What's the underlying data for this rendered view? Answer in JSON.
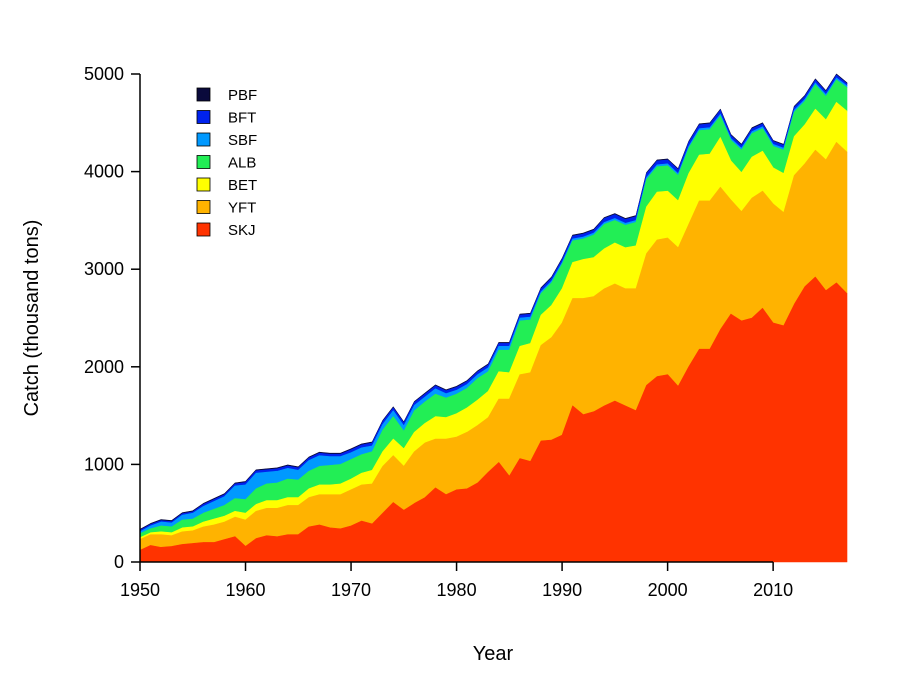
{
  "chart_data": {
    "type": "area",
    "stacked": true,
    "title": "",
    "xlabel": "Year",
    "ylabel": "Catch (thousand tons)",
    "xlim": [
      1950,
      2017
    ],
    "ylim": [
      0,
      5000
    ],
    "x_ticks": [
      1950,
      1960,
      1970,
      1980,
      1990,
      2000,
      2010
    ],
    "y_ticks": [
      0,
      1000,
      2000,
      3000,
      4000,
      5000
    ],
    "grid": false,
    "legend_position": "top-left",
    "legend_order": [
      "PBF",
      "BFT",
      "SBF",
      "ALB",
      "BET",
      "YFT",
      "SKJ"
    ],
    "years": [
      1950,
      1951,
      1952,
      1953,
      1954,
      1955,
      1956,
      1957,
      1958,
      1959,
      1960,
      1961,
      1962,
      1963,
      1964,
      1965,
      1966,
      1967,
      1968,
      1969,
      1970,
      1971,
      1972,
      1973,
      1974,
      1975,
      1976,
      1977,
      1978,
      1979,
      1980,
      1981,
      1982,
      1983,
      1984,
      1985,
      1986,
      1987,
      1988,
      1989,
      1990,
      1991,
      1992,
      1993,
      1994,
      1995,
      1996,
      1997,
      1998,
      1999,
      2000,
      2001,
      2002,
      2003,
      2004,
      2005,
      2006,
      2007,
      2008,
      2009,
      2010,
      2011,
      2012,
      2013,
      2014,
      2015,
      2016,
      2017
    ],
    "series": [
      {
        "name": "SKJ",
        "color": "#ff3300",
        "values": [
          120,
          170,
          150,
          160,
          180,
          190,
          200,
          200,
          230,
          260,
          160,
          240,
          270,
          260,
          280,
          280,
          360,
          380,
          350,
          340,
          370,
          420,
          390,
          500,
          610,
          530,
          600,
          660,
          760,
          690,
          740,
          750,
          810,
          920,
          1020,
          880,
          1060,
          1030,
          1240,
          1250,
          1300,
          1600,
          1510,
          1540,
          1600,
          1650,
          1600,
          1550,
          1810,
          1900,
          1920,
          1800,
          2000,
          2180,
          2180,
          2380,
          2540,
          2470,
          2500,
          2600,
          2450,
          2420,
          2640,
          2820,
          2920,
          2780,
          2860,
          2750
        ]
      },
      {
        "name": "YFT",
        "color": "#ffb300",
        "values": [
          110,
          110,
          130,
          110,
          130,
          130,
          160,
          180,
          180,
          200,
          270,
          280,
          280,
          290,
          300,
          300,
          300,
          310,
          340,
          350,
          370,
          370,
          410,
          480,
          480,
          450,
          530,
          560,
          500,
          570,
          540,
          580,
          590,
          560,
          650,
          790,
          860,
          910,
          980,
          1050,
          1150,
          1100,
          1190,
          1180,
          1200,
          1200,
          1200,
          1250,
          1350,
          1400,
          1400,
          1420,
          1460,
          1520,
          1520,
          1460,
          1170,
          1120,
          1230,
          1200,
          1220,
          1160,
          1320,
          1260,
          1300,
          1340,
          1440,
          1450
        ]
      },
      {
        "name": "BET",
        "color": "#ffff00",
        "values": [
          20,
          20,
          30,
          30,
          40,
          40,
          50,
          60,
          60,
          60,
          70,
          70,
          80,
          80,
          80,
          80,
          90,
          100,
          100,
          110,
          110,
          120,
          140,
          150,
          170,
          180,
          200,
          200,
          230,
          220,
          240,
          250,
          260,
          270,
          280,
          270,
          290,
          300,
          310,
          330,
          350,
          370,
          400,
          400,
          410,
          420,
          420,
          440,
          480,
          490,
          480,
          480,
          520,
          470,
          480,
          510,
          400,
          400,
          420,
          410,
          370,
          400,
          400,
          400,
          420,
          410,
          410,
          420
        ]
      },
      {
        "name": "ALB",
        "color": "#22ee55",
        "values": [
          40,
          40,
          60,
          60,
          80,
          80,
          90,
          100,
          110,
          130,
          140,
          160,
          170,
          180,
          190,
          180,
          180,
          190,
          200,
          200,
          200,
          190,
          190,
          220,
          230,
          180,
          220,
          220,
          230,
          200,
          200,
          200,
          220,
          200,
          220,
          230,
          260,
          240,
          220,
          230,
          250,
          220,
          210,
          230,
          250,
          230,
          230,
          240,
          280,
          260,
          260,
          260,
          260,
          250,
          250,
          220,
          210,
          230,
          240,
          230,
          220,
          240,
          250,
          240,
          250,
          240,
          230,
          240
        ]
      },
      {
        "name": "SBF",
        "color": "#0099ff",
        "values": [
          20,
          30,
          40,
          40,
          50,
          60,
          70,
          80,
          90,
          130,
          150,
          160,
          120,
          120,
          110,
          100,
          110,
          110,
          90,
          80,
          70,
          70,
          60,
          60,
          60,
          55,
          55,
          50,
          55,
          45,
          40,
          40,
          40,
          40,
          40,
          40,
          30,
          30,
          20,
          20,
          20,
          20,
          20,
          20,
          20,
          20,
          20,
          20,
          20,
          20,
          20,
          20,
          20,
          20,
          20,
          20,
          20,
          20,
          20,
          20,
          20,
          20,
          20,
          20,
          20,
          20,
          20,
          20
        ]
      },
      {
        "name": "BFT",
        "color": "#0022ee",
        "values": [
          15,
          15,
          15,
          15,
          15,
          15,
          20,
          20,
          20,
          20,
          25,
          25,
          25,
          25,
          25,
          25,
          25,
          25,
          25,
          25,
          30,
          30,
          30,
          30,
          30,
          30,
          30,
          30,
          30,
          30,
          30,
          30,
          30,
          30,
          30,
          30,
          30,
          30,
          30,
          30,
          30,
          30,
          30,
          30,
          40,
          40,
          40,
          40,
          40,
          40,
          40,
          40,
          40,
          40,
          40,
          40,
          30,
          30,
          30,
          30,
          30,
          30,
          30,
          30,
          30,
          30,
          30,
          20
        ]
      },
      {
        "name": "PBF",
        "color": "#0a0a3c",
        "values": [
          10,
          10,
          10,
          10,
          10,
          10,
          10,
          10,
          10,
          10,
          10,
          10,
          10,
          10,
          10,
          10,
          10,
          10,
          10,
          10,
          10,
          10,
          10,
          10,
          10,
          10,
          10,
          10,
          10,
          10,
          10,
          10,
          10,
          10,
          10,
          10,
          10,
          10,
          10,
          10,
          10,
          10,
          10,
          10,
          10,
          10,
          10,
          10,
          10,
          10,
          10,
          10,
          10,
          10,
          10,
          10,
          10,
          10,
          10,
          10,
          10,
          10,
          10,
          10,
          10,
          10,
          10,
          10
        ]
      }
    ]
  }
}
